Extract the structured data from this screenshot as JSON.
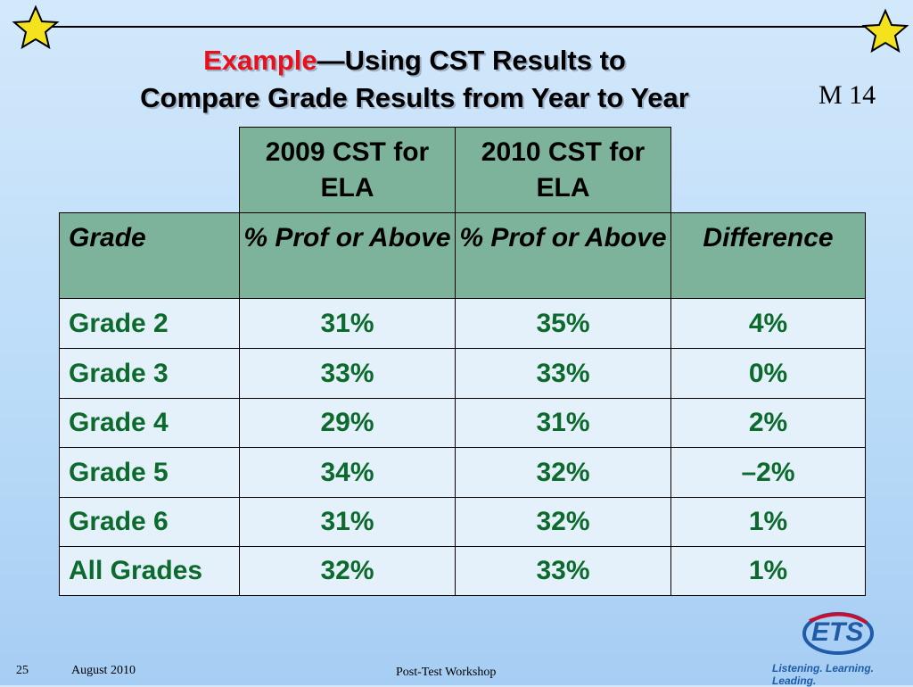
{
  "header": {
    "title_highlight": "Example",
    "title_rest": "—Using CST Results to",
    "title_line2": "Compare Grade Results from Year to Year",
    "slide_code": "M 14"
  },
  "table": {
    "group_headers": [
      "2009 CST for ELA",
      "2010 CST for ELA"
    ],
    "columns": [
      "Grade",
      "% Prof or Above",
      "% Prof or Above",
      "Difference"
    ],
    "rows": [
      [
        "Grade 2",
        "31%",
        "35%",
        "4%"
      ],
      [
        "Grade 3",
        "33%",
        "33%",
        "0%"
      ],
      [
        "Grade 4",
        "29%",
        "31%",
        "2%"
      ],
      [
        "Grade 5",
        "34%",
        "32%",
        "–2%"
      ],
      [
        "Grade 6",
        "31%",
        "32%",
        "1%"
      ],
      [
        "All Grades",
        "32%",
        "33%",
        "1%"
      ]
    ]
  },
  "footer": {
    "slide_number": "25",
    "date": "August 2010",
    "event": "Post-Test Workshop",
    "logo": "ETS",
    "tagline": "Listening. Learning. Leading."
  }
}
